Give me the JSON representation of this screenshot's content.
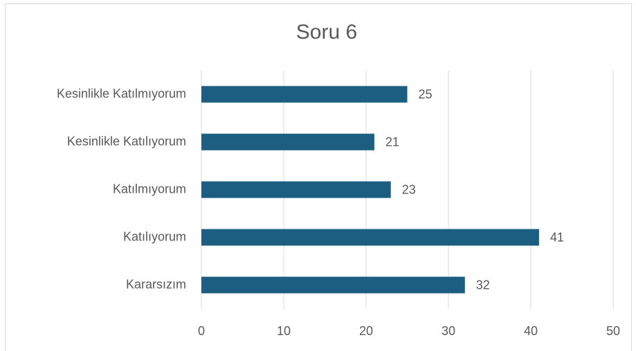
{
  "chart_data": {
    "type": "hbar",
    "title": "Soru 6",
    "categories": [
      "Kesinlikle Katılmıyorum",
      "Kesinlikle Katılıyorum",
      "Katılmıyorum",
      "Katılıyorum",
      "Kararsızım"
    ],
    "values": [
      25,
      21,
      23,
      41,
      32
    ],
    "color": "#1b5e82",
    "xlim": [
      0,
      50
    ],
    "xticks": [
      0,
      10,
      20,
      30,
      40,
      50
    ],
    "grid": true
  }
}
